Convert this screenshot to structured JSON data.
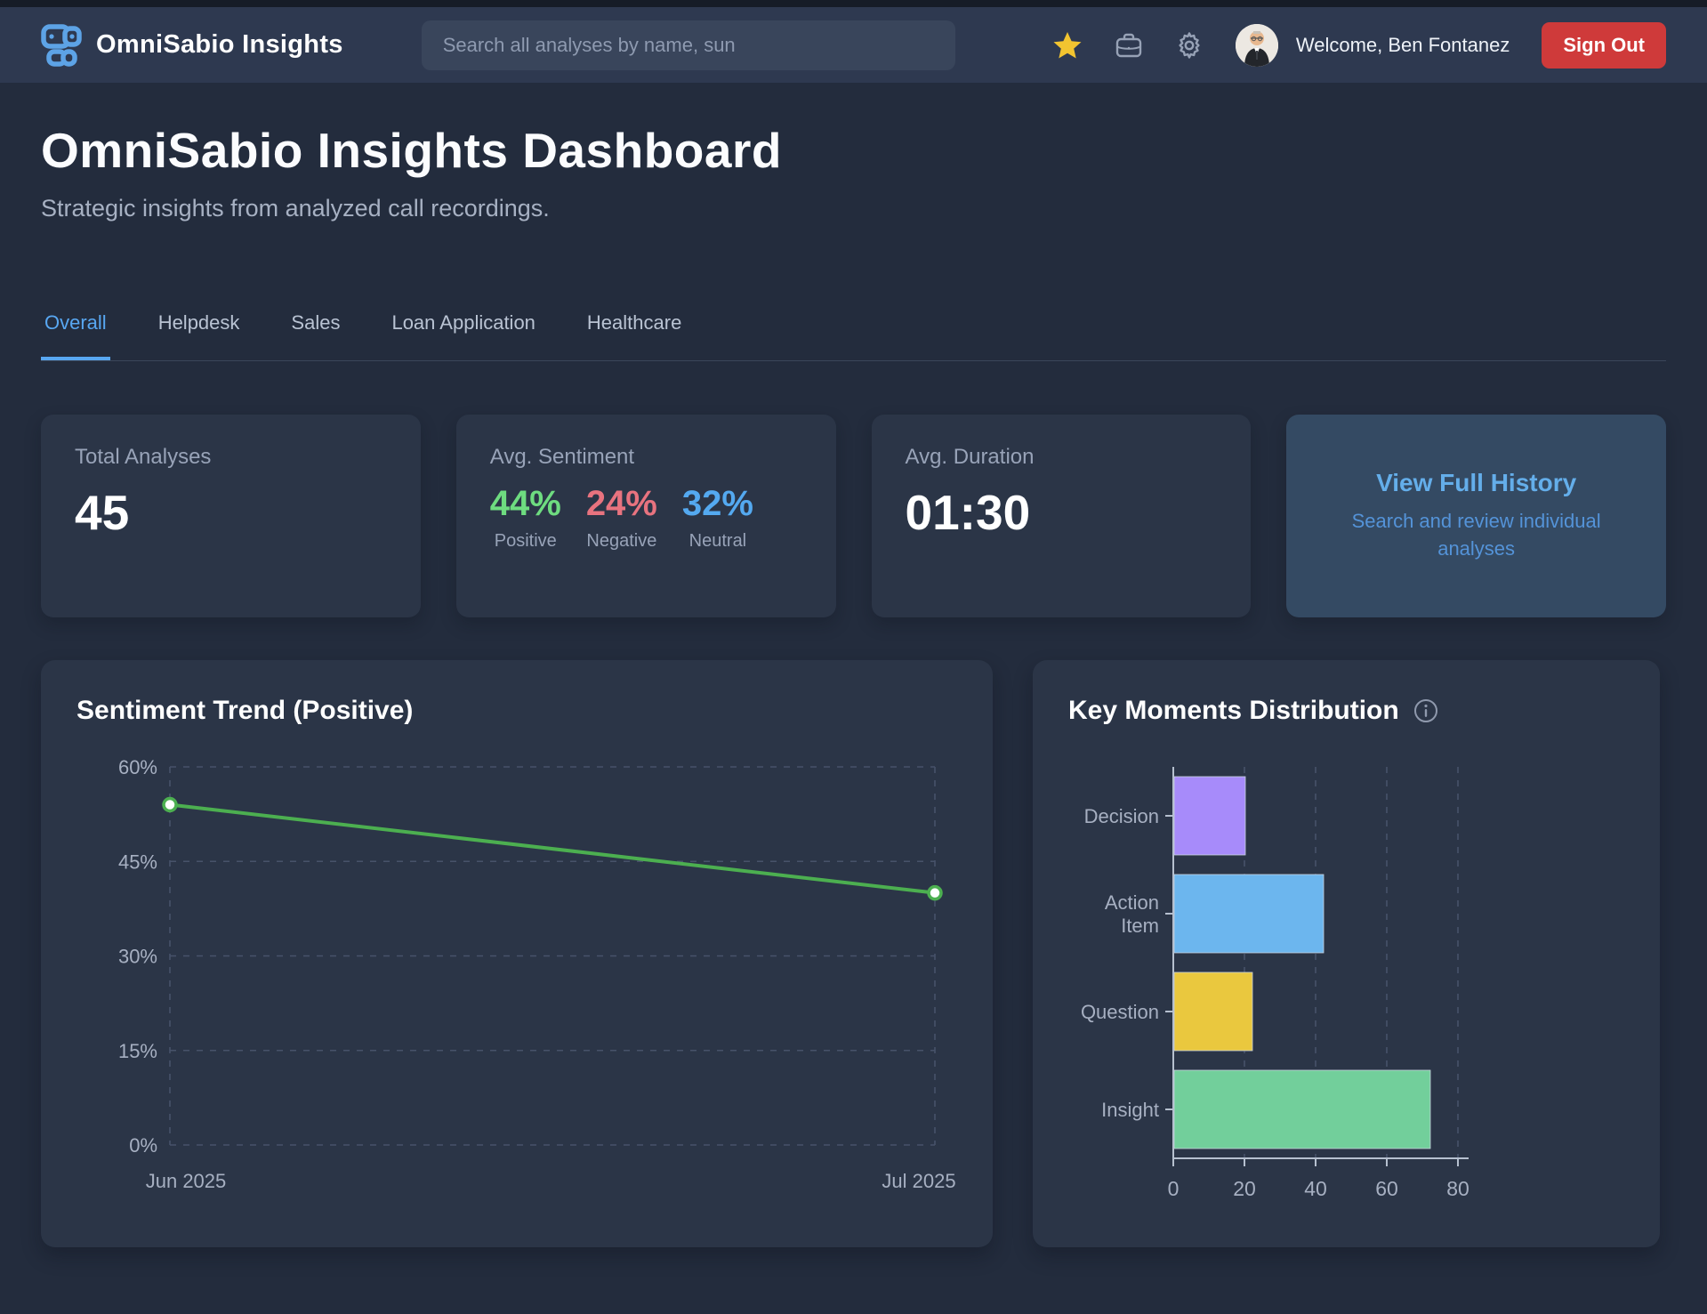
{
  "navbar": {
    "brand": "OmniSabio Insights",
    "search_placeholder": "Search all analyses by name, sun",
    "welcome": "Welcome, Ben Fontanez",
    "sign_out": "Sign Out",
    "icons": [
      "logo-blocks-icon",
      "star-icon",
      "briefcase-icon",
      "gear-icon",
      "avatar"
    ]
  },
  "header": {
    "title": "OmniSabio Insights Dashboard",
    "subtitle": "Strategic insights from analyzed call recordings."
  },
  "tabs": [
    "Overall",
    "Helpdesk",
    "Sales",
    "Loan Application",
    "Healthcare"
  ],
  "active_tab": "Overall",
  "stats": {
    "total": {
      "label": "Total Analyses",
      "value": "45"
    },
    "sentiment": {
      "label": "Avg. Sentiment",
      "items": [
        {
          "value": "44%",
          "label": "Positive",
          "color": "#6edc80"
        },
        {
          "value": "24%",
          "label": "Negative",
          "color": "#e8737f"
        },
        {
          "value": "32%",
          "label": "Neutral",
          "color": "#54a9f0"
        }
      ]
    },
    "duration": {
      "label": "Avg. Duration",
      "value": "01:30"
    },
    "history": {
      "title": "View Full History",
      "subtitle": "Search and review individual analyses"
    }
  },
  "chart_data": [
    {
      "type": "line",
      "title": "Sentiment Trend (Positive)",
      "x": [
        "Jun 2025",
        "Jul 2025"
      ],
      "values": [
        54,
        40
      ],
      "ylim": [
        0,
        60
      ],
      "yticks": [
        0,
        15,
        30,
        45,
        60
      ],
      "ytick_suffix": "%",
      "line_color": "#4caf50",
      "point_fill": "#ffffff",
      "grid": "dashed",
      "legend_position": "none"
    },
    {
      "type": "bar",
      "title": "Key Moments Distribution",
      "orientation": "horizontal",
      "categories": [
        "Decision",
        "Action Item",
        "Question",
        "Insight"
      ],
      "values": [
        20,
        42,
        22,
        72
      ],
      "colors": [
        "#a78bfa",
        "#6cb6ee",
        "#eac83e",
        "#72cf9b"
      ],
      "xlim": [
        0,
        80
      ],
      "xticks": [
        0,
        20,
        40,
        60,
        80
      ],
      "grid": "dashed",
      "legend_position": "none"
    }
  ],
  "theme": {
    "page_bg": "#232c3d",
    "navbar_bg": "#2e3950",
    "card_bg": "#2b3547",
    "history_card_bg": "#344a63",
    "accent_blue": "#58a7f1",
    "danger_red": "#cf3a3a",
    "star_yellow": "#f2c430",
    "grid_color": "#47526a",
    "axis_label_color": "#a7b0c2"
  }
}
